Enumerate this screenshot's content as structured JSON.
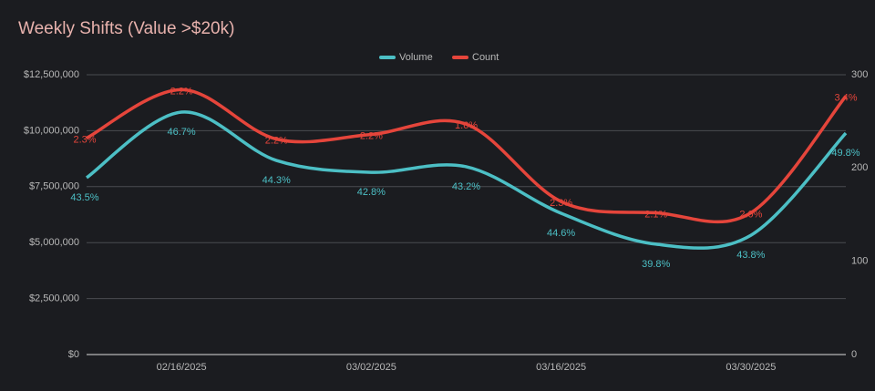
{
  "chart_data": {
    "type": "line",
    "title": "Weekly Shifts (Value >$20k)",
    "categories": [
      null,
      "02/16/2025",
      null,
      "03/02/2025",
      null,
      "03/16/2025",
      null,
      "03/30/2025",
      null
    ],
    "series": [
      {
        "name": "Volume",
        "color": "#4cbfc5",
        "values": [
          7900000,
          10830000,
          8670000,
          8140000,
          8390000,
          6310000,
          4930000,
          5330000,
          9890000
        ],
        "point_labels": [
          "43.5%",
          "46.7%",
          "44.3%",
          "42.8%",
          "43.2%",
          "44.6%",
          "39.8%",
          "43.8%",
          "49.8%"
        ]
      },
      {
        "name": "Count",
        "color": "#e5453b",
        "axis": "y2",
        "values": [
          232,
          284,
          231,
          236,
          247,
          164,
          152,
          152,
          277
        ],
        "point_labels": [
          "2.3%",
          "2.2%",
          "2.2%",
          "2.2%",
          "1.6%",
          "2.3%",
          "2.1%",
          "2.0%",
          "3.4%"
        ]
      }
    ],
    "ylim": [
      0,
      12500000
    ],
    "yticks": [
      {
        "value": 0,
        "label": "$0"
      },
      {
        "value": 2500000,
        "label": "$2,500,000"
      },
      {
        "value": 5000000,
        "label": "$5,000,000"
      },
      {
        "value": 7500000,
        "label": "$7,500,000"
      },
      {
        "value": 10000000,
        "label": "$10,000,000"
      },
      {
        "value": 12500000,
        "label": "$12,500,000"
      }
    ],
    "y2lim": [
      0,
      300
    ],
    "y2ticks": [
      0,
      100,
      200,
      300
    ],
    "grid": true,
    "legend": "top"
  }
}
